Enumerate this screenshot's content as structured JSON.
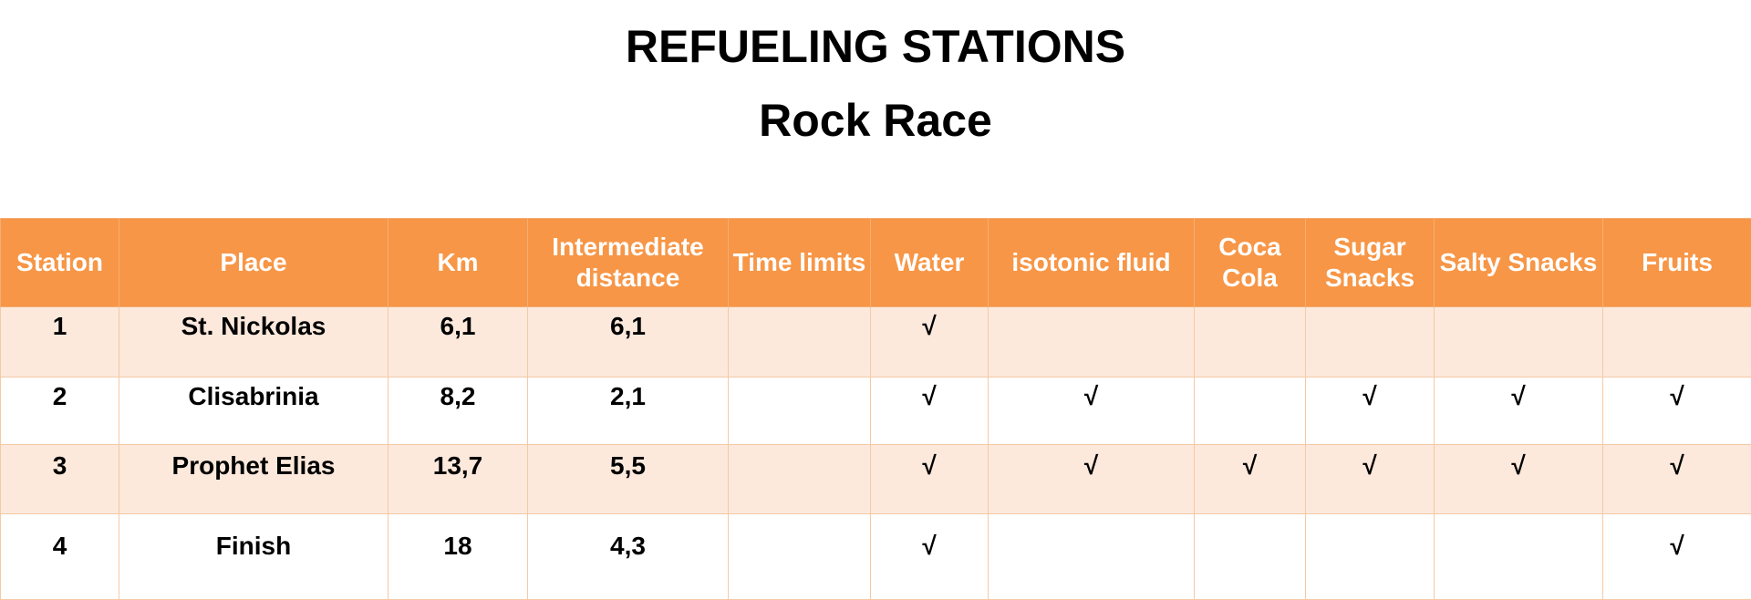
{
  "document": {
    "title": "REFUELING STATIONS",
    "subtitle": "Rock Race"
  },
  "table": {
    "headers": [
      "Station",
      "Place",
      "Km",
      "Intermediate distance",
      "Time limits",
      "Water",
      "isotonic fluid",
      "Coca Cola",
      "Sugar Snacks",
      "Salty Snacks",
      "Fruits"
    ],
    "rows": [
      [
        "1",
        "St. Nickolas",
        "6,1",
        "6,1",
        "",
        "√",
        "",
        "",
        "",
        "",
        ""
      ],
      [
        "2",
        "Clisabrinia",
        "8,2",
        "2,1",
        "",
        "√",
        "√",
        "",
        "√",
        "√",
        "√"
      ],
      [
        "3",
        "Prophet Elias",
        "13,7",
        "5,5",
        "",
        "√",
        "√",
        "√",
        "√",
        "√",
        "√"
      ],
      [
        "4",
        "Finish",
        "18",
        "4,3",
        "",
        "√",
        "",
        "",
        "",
        "",
        "√"
      ]
    ]
  },
  "colors": {
    "header_bg": "#f79646",
    "header_text": "#ffffff",
    "band_row_bg": "#fce9dc",
    "border": "#f6c9a4"
  }
}
